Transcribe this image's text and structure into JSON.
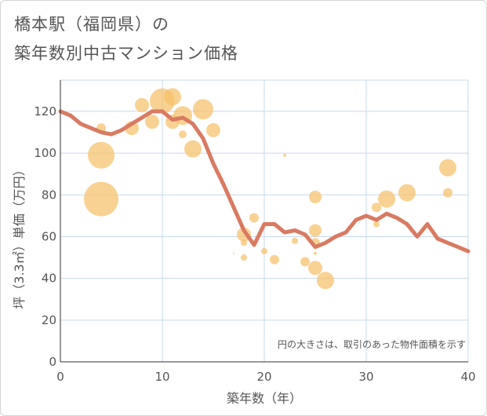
{
  "title_line1": "橋本駅（福岡県）の",
  "title_line2": "築年数別中古マンション価格",
  "chart_data": {
    "type": "scatter",
    "xlabel": "築年数（年）",
    "ylabel": "坪（3.3㎡）単価（万円）",
    "xlim": [
      0,
      40
    ],
    "ylim": [
      0,
      135
    ],
    "xticks": [
      0,
      10,
      20,
      30,
      40
    ],
    "yticks": [
      0,
      20,
      40,
      60,
      80,
      100,
      120
    ],
    "grid": true,
    "note": "円の大きさは、取引のあった物件面積を示す",
    "colors": {
      "bubble": "#f5c06a",
      "line": "#d97a62",
      "grid": "#c7d8ea",
      "text": "#555555"
    },
    "bubbles": [
      {
        "x": 4,
        "y": 112,
        "size": 6
      },
      {
        "x": 4,
        "y": 99,
        "size": 17
      },
      {
        "x": 4,
        "y": 78,
        "size": 22
      },
      {
        "x": 7,
        "y": 112,
        "size": 9
      },
      {
        "x": 8,
        "y": 123,
        "size": 9
      },
      {
        "x": 9,
        "y": 115,
        "size": 9
      },
      {
        "x": 10,
        "y": 125,
        "size": 16
      },
      {
        "x": 11,
        "y": 127,
        "size": 11
      },
      {
        "x": 11,
        "y": 115,
        "size": 9
      },
      {
        "x": 12,
        "y": 118,
        "size": 12
      },
      {
        "x": 12,
        "y": 109,
        "size": 5
      },
      {
        "x": 13,
        "y": 102,
        "size": 11
      },
      {
        "x": 14,
        "y": 121,
        "size": 13
      },
      {
        "x": 15,
        "y": 111,
        "size": 9
      },
      {
        "x": 17,
        "y": 52,
        "size": 1
      },
      {
        "x": 18,
        "y": 61,
        "size": 9
      },
      {
        "x": 18,
        "y": 57,
        "size": 4
      },
      {
        "x": 18,
        "y": 50,
        "size": 4
      },
      {
        "x": 19,
        "y": 69,
        "size": 6
      },
      {
        "x": 20,
        "y": 53,
        "size": 4
      },
      {
        "x": 21,
        "y": 49,
        "size": 6
      },
      {
        "x": 22,
        "y": 99,
        "size": 2
      },
      {
        "x": 23,
        "y": 58,
        "size": 4
      },
      {
        "x": 24,
        "y": 48,
        "size": 6
      },
      {
        "x": 25,
        "y": 79,
        "size": 8
      },
      {
        "x": 25,
        "y": 63,
        "size": 8
      },
      {
        "x": 25,
        "y": 57,
        "size": 6
      },
      {
        "x": 25,
        "y": 52,
        "size": 2
      },
      {
        "x": 25,
        "y": 45,
        "size": 9
      },
      {
        "x": 26,
        "y": 39,
        "size": 11
      },
      {
        "x": 31,
        "y": 74,
        "size": 6
      },
      {
        "x": 31,
        "y": 66,
        "size": 4
      },
      {
        "x": 32,
        "y": 78,
        "size": 11
      },
      {
        "x": 34,
        "y": 81,
        "size": 11
      },
      {
        "x": 38,
        "y": 93,
        "size": 11
      },
      {
        "x": 38,
        "y": 81,
        "size": 6
      }
    ],
    "line": {
      "x": [
        0,
        1,
        2,
        3,
        4,
        5,
        6,
        7,
        8,
        9,
        10,
        11,
        12,
        13,
        14,
        15,
        16,
        17,
        18,
        19,
        20,
        21,
        22,
        23,
        24,
        25,
        26,
        27,
        28,
        29,
        30,
        31,
        32,
        33,
        34,
        35,
        36,
        37,
        38,
        39,
        40
      ],
      "y": [
        120,
        118,
        114,
        112,
        110,
        109,
        111,
        114,
        117,
        120,
        120,
        116,
        117,
        114,
        107,
        95,
        85,
        74,
        63,
        56,
        66,
        66,
        62,
        63,
        61,
        55,
        57,
        60,
        62,
        68,
        70,
        68,
        71,
        69,
        66,
        60,
        66,
        59,
        57,
        55,
        53
      ]
    }
  }
}
